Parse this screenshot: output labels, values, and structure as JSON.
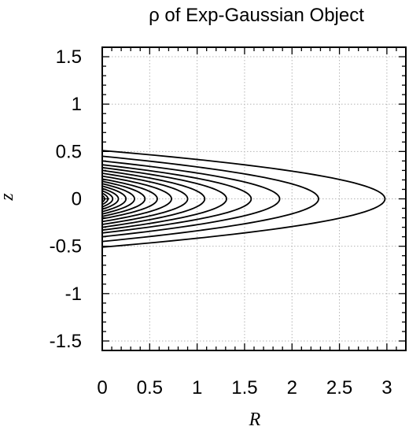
{
  "chart_data": {
    "type": "line",
    "title": "ρ of Exp-Gaussian Object",
    "xlabel": "R",
    "ylabel": "z",
    "xlim": [
      0,
      3.2
    ],
    "ylim": [
      -1.6,
      1.6
    ],
    "xticks": [
      0,
      0.5,
      1,
      1.5,
      2,
      2.5,
      3
    ],
    "xtick_labels": [
      "0",
      "0.5",
      "1",
      "1.5",
      "2",
      "2.5",
      "3"
    ],
    "yticks": [
      1.5,
      1,
      0.5,
      0,
      -0.5,
      -1,
      -1.5
    ],
    "ytick_labels": [
      "1.5",
      "1",
      "0.5",
      "0",
      "-0.5",
      "-1",
      "-1.5"
    ],
    "grid": true,
    "series": [
      {
        "values": [
          [
            2.98,
            0.0
          ],
          [
            0.0,
            0.51
          ]
        ]
      },
      {
        "values": [
          [
            2.28,
            0.0
          ],
          [
            0.0,
            0.45
          ]
        ]
      },
      {
        "values": [
          [
            1.87,
            0.0
          ],
          [
            0.0,
            0.4
          ]
        ]
      },
      {
        "values": [
          [
            1.57,
            0.0
          ],
          [
            0.0,
            0.36
          ]
        ]
      },
      {
        "values": [
          [
            1.31,
            0.0
          ],
          [
            0.0,
            0.33
          ]
        ]
      },
      {
        "values": [
          [
            1.08,
            0.0
          ],
          [
            0.0,
            0.3
          ]
        ]
      },
      {
        "values": [
          [
            0.9,
            0.0
          ],
          [
            0.0,
            0.27
          ]
        ]
      },
      {
        "values": [
          [
            0.73,
            0.0
          ],
          [
            0.0,
            0.24
          ]
        ]
      },
      {
        "values": [
          [
            0.58,
            0.0
          ],
          [
            0.0,
            0.21
          ]
        ]
      },
      {
        "values": [
          [
            0.45,
            0.0
          ],
          [
            0.0,
            0.185
          ]
        ]
      },
      {
        "values": [
          [
            0.34,
            0.0
          ],
          [
            0.0,
            0.16
          ]
        ]
      },
      {
        "values": [
          [
            0.25,
            0.0
          ],
          [
            0.0,
            0.135
          ]
        ]
      },
      {
        "values": [
          [
            0.17,
            0.0
          ],
          [
            0.0,
            0.11
          ]
        ]
      },
      {
        "values": [
          [
            0.11,
            0.0
          ],
          [
            0.0,
            0.085
          ]
        ]
      },
      {
        "values": [
          [
            0.06,
            0.0
          ],
          [
            0.0,
            0.06
          ]
        ]
      },
      {
        "values": [
          [
            0.025,
            0.0
          ],
          [
            0.0,
            0.035
          ]
        ]
      }
    ]
  }
}
